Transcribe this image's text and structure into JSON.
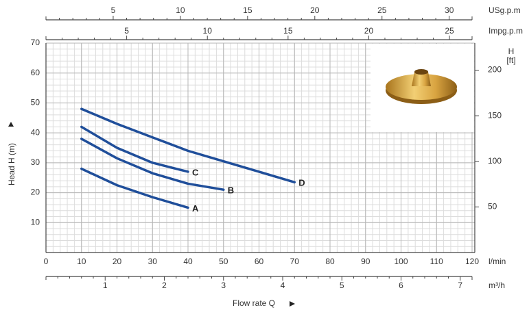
{
  "chart_data": {
    "type": "line",
    "xlabel": "Flow rate Q",
    "ylabel": "Head H (m)",
    "xunit": "l/min",
    "xlim": [
      0,
      120
    ],
    "xticks": [
      0,
      10,
      20,
      30,
      40,
      50,
      60,
      70,
      80,
      90,
      100,
      110,
      120
    ],
    "ylim": [
      0,
      70
    ],
    "yticks": [
      10,
      20,
      30,
      40,
      50,
      60,
      70
    ],
    "grid": true,
    "y2label": [
      "H",
      "[ft]"
    ],
    "y2lim": [
      0,
      229.66
    ],
    "y2ticks": [
      50,
      100,
      150,
      200
    ],
    "extra_x_axes": [
      {
        "unit": "USg.p.m",
        "position": "top",
        "xlim": [
          0,
          31.7
        ],
        "xticks": [
          5,
          10,
          15,
          20,
          25,
          30
        ]
      },
      {
        "unit": "Impg.p.m",
        "position": "top",
        "xlim": [
          0,
          26.4
        ],
        "xticks": [
          5,
          10,
          15,
          20,
          25
        ]
      },
      {
        "unit": "m³/h",
        "position": "bottom",
        "xlim": [
          0,
          7.2
        ],
        "xticks": [
          1,
          2,
          3,
          4,
          5,
          6,
          7
        ]
      }
    ],
    "series": [
      {
        "name": "A",
        "color": "#1f4e9a",
        "x": [
          10,
          20,
          30,
          40
        ],
        "values": [
          28,
          22.5,
          18.5,
          15
        ]
      },
      {
        "name": "B",
        "color": "#1f4e9a",
        "x": [
          10,
          20,
          30,
          40,
          50
        ],
        "values": [
          38,
          31.5,
          26.5,
          23,
          21
        ]
      },
      {
        "name": "C",
        "color": "#1f4e9a",
        "x": [
          10,
          20,
          30,
          40
        ],
        "values": [
          42,
          35,
          30,
          27
        ]
      },
      {
        "name": "D",
        "color": "#1f4e9a",
        "x": [
          10,
          20,
          30,
          40,
          50,
          60,
          70
        ],
        "values": [
          48,
          43,
          38.5,
          34,
          30.5,
          27,
          23.5
        ]
      }
    ]
  }
}
